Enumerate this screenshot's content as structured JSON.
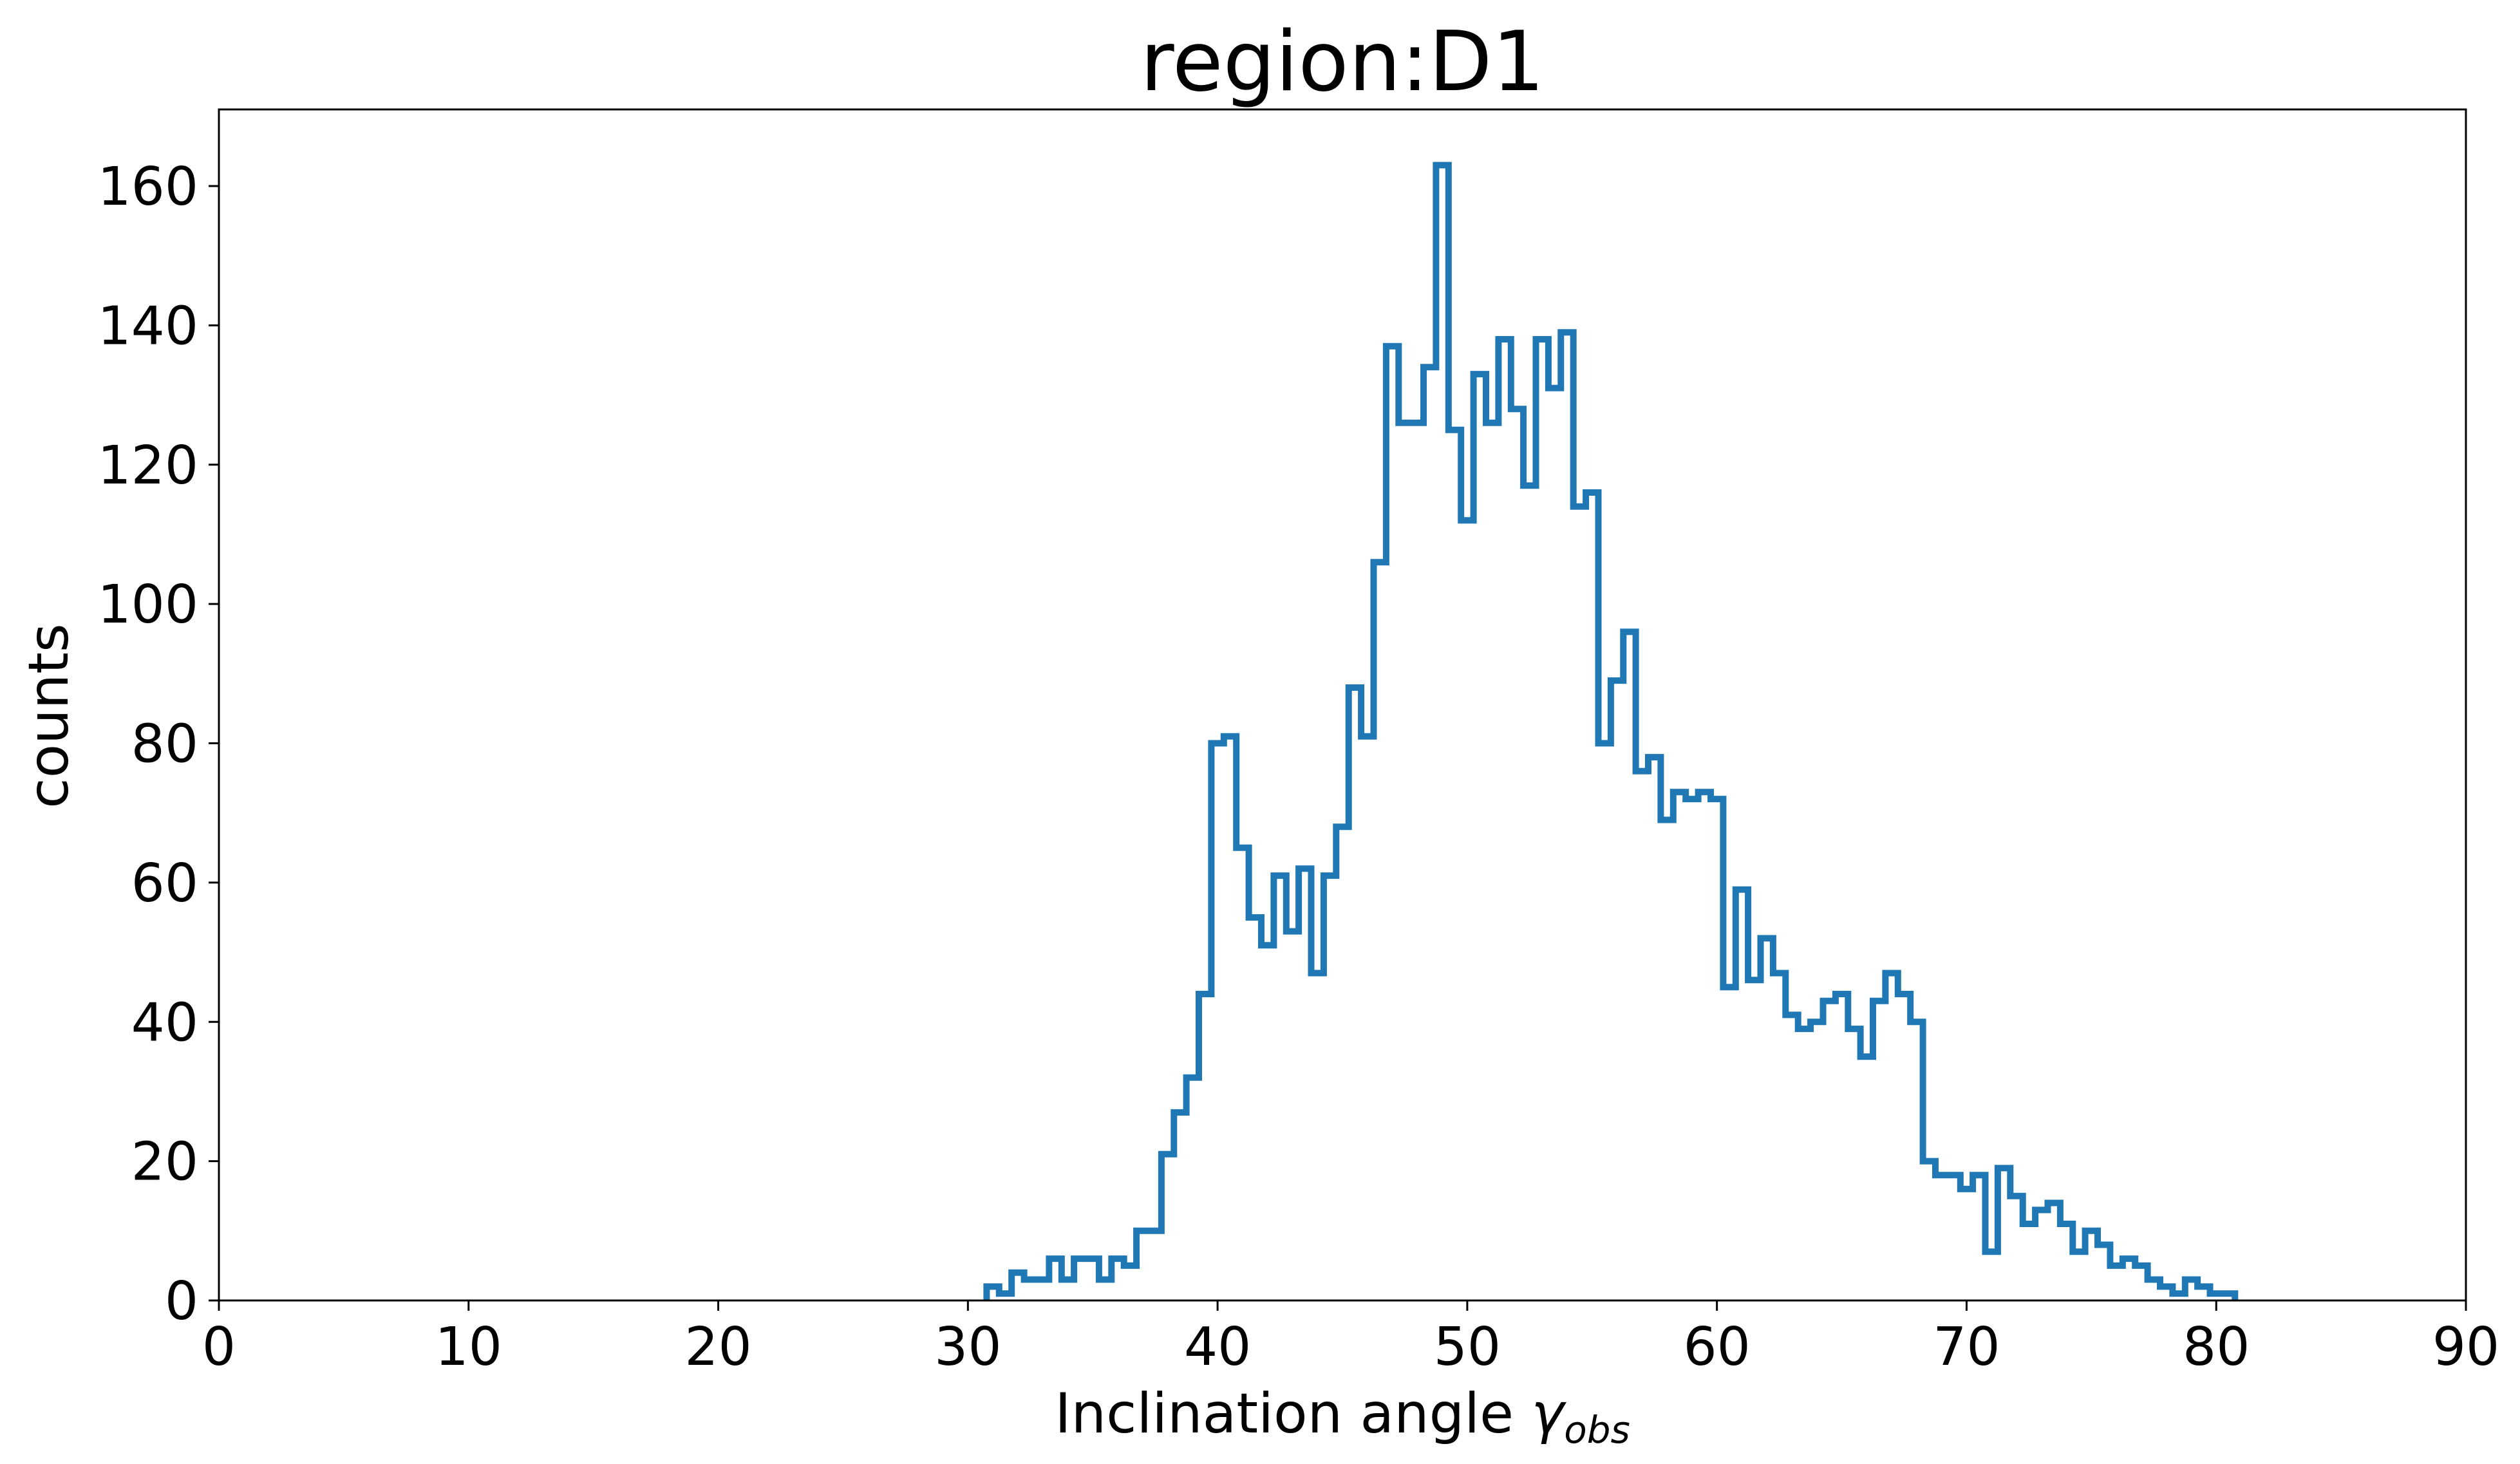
{
  "chart_data": {
    "type": "histogram",
    "title": "region:D1",
    "xlabel": {
      "text": "Inclination angle ",
      "symbol": "γ",
      "subscript": "obs"
    },
    "ylabel": "counts",
    "xlim": [
      0,
      90
    ],
    "ylim": [
      0,
      171
    ],
    "xticks": [
      0,
      10,
      20,
      30,
      40,
      50,
      60,
      70,
      80,
      90
    ],
    "yticks": [
      0,
      20,
      40,
      60,
      80,
      100,
      120,
      140,
      160
    ],
    "grid": false,
    "line_color": "#1f77b4",
    "bin_start": 30.75,
    "bin_width": 0.5,
    "counts": [
      2,
      1,
      4,
      3,
      3,
      6,
      3,
      6,
      6,
      3,
      6,
      5,
      10,
      10,
      21,
      27,
      32,
      44,
      80,
      81,
      65,
      55,
      51,
      61,
      53,
      62,
      47,
      61,
      68,
      88,
      81,
      106,
      137,
      126,
      126,
      134,
      163,
      125,
      112,
      133,
      126,
      138,
      128,
      117,
      138,
      131,
      139,
      114,
      116,
      80,
      89,
      96,
      76,
      78,
      69,
      73,
      72,
      73,
      72,
      45,
      59,
      46,
      52,
      47,
      41,
      39,
      40,
      43,
      44,
      39,
      35,
      43,
      47,
      44,
      40,
      20,
      18,
      18,
      16,
      18,
      7,
      19,
      15,
      11,
      13,
      14,
      11,
      7,
      10,
      8,
      5,
      6,
      5,
      3,
      2,
      1,
      3,
      2,
      1,
      1
    ]
  }
}
